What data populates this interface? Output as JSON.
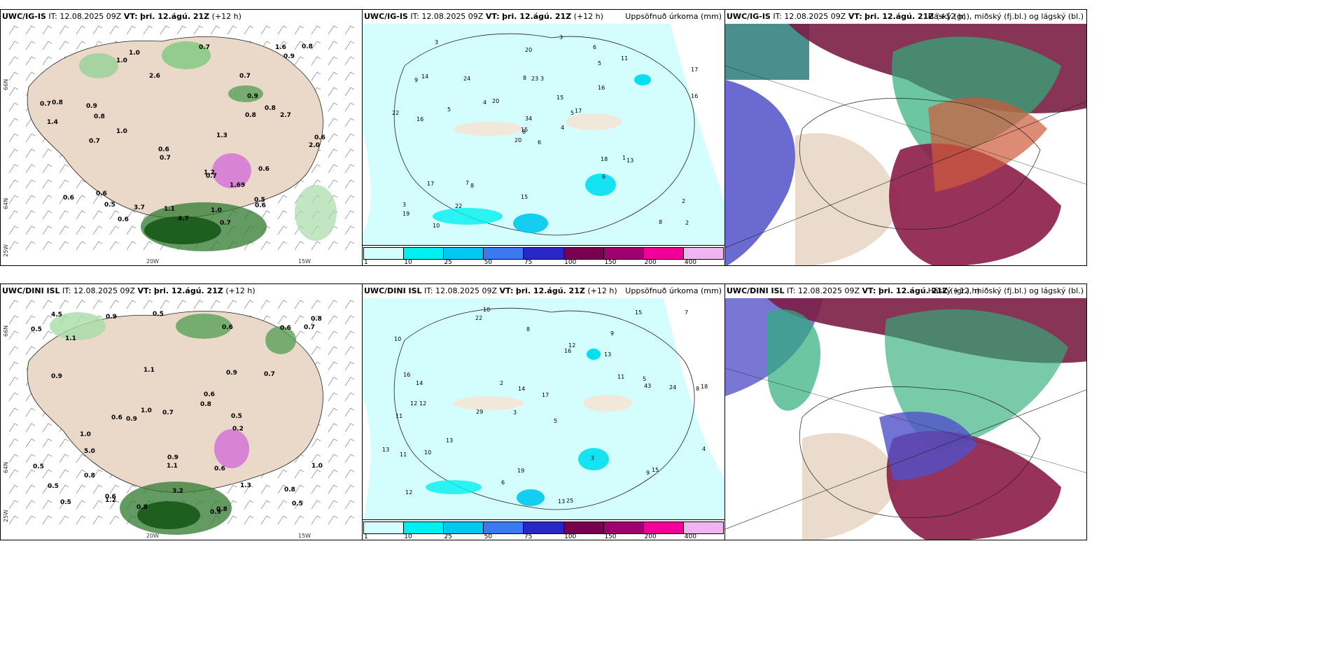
{
  "rows": [
    {
      "model": "UWC/IG-IS",
      "it_label": "IT:",
      "it_value": "12.08.2025 09Z",
      "vt_label": "VT:",
      "vt_value": "þri. 12.ágú. 21Z",
      "lead": "(+12 h)"
    },
    {
      "model": "UWC/DINI ISL",
      "it_label": "IT:",
      "it_value": "12.08.2025 09Z",
      "vt_label": "VT:",
      "vt_value": "þri. 12.ágú. 21Z",
      "lead": "(+12 h)"
    }
  ],
  "panel_titles": {
    "precip": "Uppsöfnuð úrkoma (mm)",
    "cloud": "Háský (gr.), miðský (fj.bl.) og lágský (bl.)"
  },
  "axis_labels": {
    "lat_66": "66N",
    "lat_64": "64N",
    "lon_25": "25W",
    "lon_20": "20W",
    "lon_15": "15W"
  },
  "colorbar": {
    "colors": [
      "#d4fdfd",
      "#00f0f0",
      "#00c8f0",
      "#3c78f0",
      "#2828c8",
      "#780050",
      "#a0006e",
      "#f00096",
      "#f0b4f0"
    ],
    "ticks": [
      "1",
      "10",
      "25",
      "50",
      "75",
      "100",
      "150",
      "200",
      "400"
    ]
  },
  "panel1_labels": {
    "top": [
      "0.7",
      "1.0",
      "0.6",
      "0.9",
      "0.8",
      "1.0",
      "2.0",
      "1.0",
      "0.7",
      "0.5",
      "0.6",
      "0.7",
      "0.6",
      "1.2",
      "0.8",
      "1.6",
      "1.4",
      "0.9",
      "0.6",
      "2.7",
      "0.5",
      "0.7",
      "0.6",
      "0.6",
      "1.3",
      "0.9",
      "0.7",
      "0.8",
      "4.7",
      "2.6",
      "1.69",
      "0.8",
      "0.7",
      "3.7",
      "1.0",
      "1.1",
      "0.7",
      "0.8",
      "0.6"
    ],
    "bottom": [
      "0.8",
      "0.9",
      "0.6",
      "1.3",
      "0.9",
      "1.1",
      "0.6",
      "0.5",
      "0.5",
      "1.1",
      "0.6",
      "3.2",
      "1.0",
      "1.1",
      "0.6",
      "0.8",
      "0.9",
      "1.2",
      "0.9",
      "0.5",
      "0.6",
      "0.8",
      "0.6",
      "0.5",
      "0.7",
      "1.0",
      "0.5",
      "5.0",
      "4.5",
      "0.2",
      "0.7",
      "0.8",
      "0.9",
      "0.7",
      "0.8",
      "0.5",
      "1.0",
      "0.5",
      "0.9",
      "0.8"
    ]
  },
  "panel2_labels": {
    "top": [
      "6",
      "9",
      "8",
      "3",
      "5",
      "8",
      "6",
      "3",
      "5",
      "4",
      "3",
      "2",
      "16",
      "17",
      "20",
      "16",
      "10",
      "8",
      "15",
      "17",
      "20",
      "19",
      "22",
      "23",
      "17",
      "13",
      "14",
      "20",
      "22",
      "18",
      "16",
      "15",
      "15",
      "34",
      "24",
      "11",
      "7",
      "8",
      "2",
      "1",
      "3",
      "4",
      "5",
      "6"
    ],
    "bottom": [
      "10",
      "9",
      "8",
      "3",
      "5",
      "12",
      "10",
      "13",
      "11",
      "16",
      "17",
      "12",
      "22",
      "29",
      "13",
      "25",
      "19",
      "15",
      "11",
      "13",
      "14",
      "12",
      "18",
      "24",
      "13",
      "16",
      "14",
      "43",
      "15",
      "11",
      "9",
      "12",
      "10",
      "2",
      "3",
      "4",
      "5",
      "6",
      "7",
      "8"
    ]
  }
}
